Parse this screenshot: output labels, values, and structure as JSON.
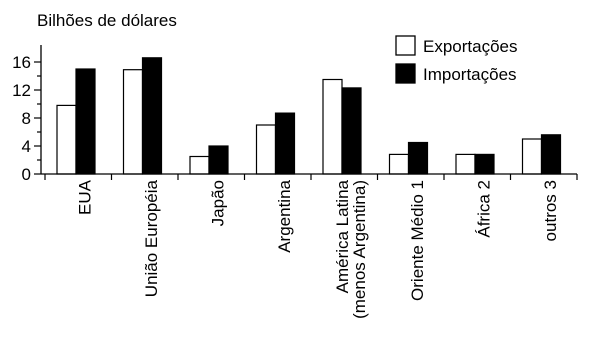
{
  "chart_data": {
    "type": "bar",
    "ylabel": "Bilhões de dólares",
    "ylim": [
      0,
      18
    ],
    "yticks": [
      0,
      4,
      8,
      12,
      16
    ],
    "grid": false,
    "legend_position": "top-right",
    "categories": [
      [
        "EUA"
      ],
      [
        "União Européia"
      ],
      [
        "Japão"
      ],
      [
        "Argentina"
      ],
      [
        "América Latina",
        "(menos Argentina)"
      ],
      [
        "Oriente Médio  1"
      ],
      [
        "África  2"
      ],
      [
        "outros  3"
      ]
    ],
    "series": [
      {
        "name": "Exportações",
        "values": [
          9.8,
          14.9,
          2.5,
          7.0,
          13.5,
          2.8,
          2.8,
          5.0
        ],
        "color": "#ffffff"
      },
      {
        "name": "Importações",
        "values": [
          15.0,
          16.6,
          4.0,
          8.7,
          12.3,
          4.5,
          2.8,
          5.6
        ],
        "color": "#000000"
      }
    ]
  }
}
